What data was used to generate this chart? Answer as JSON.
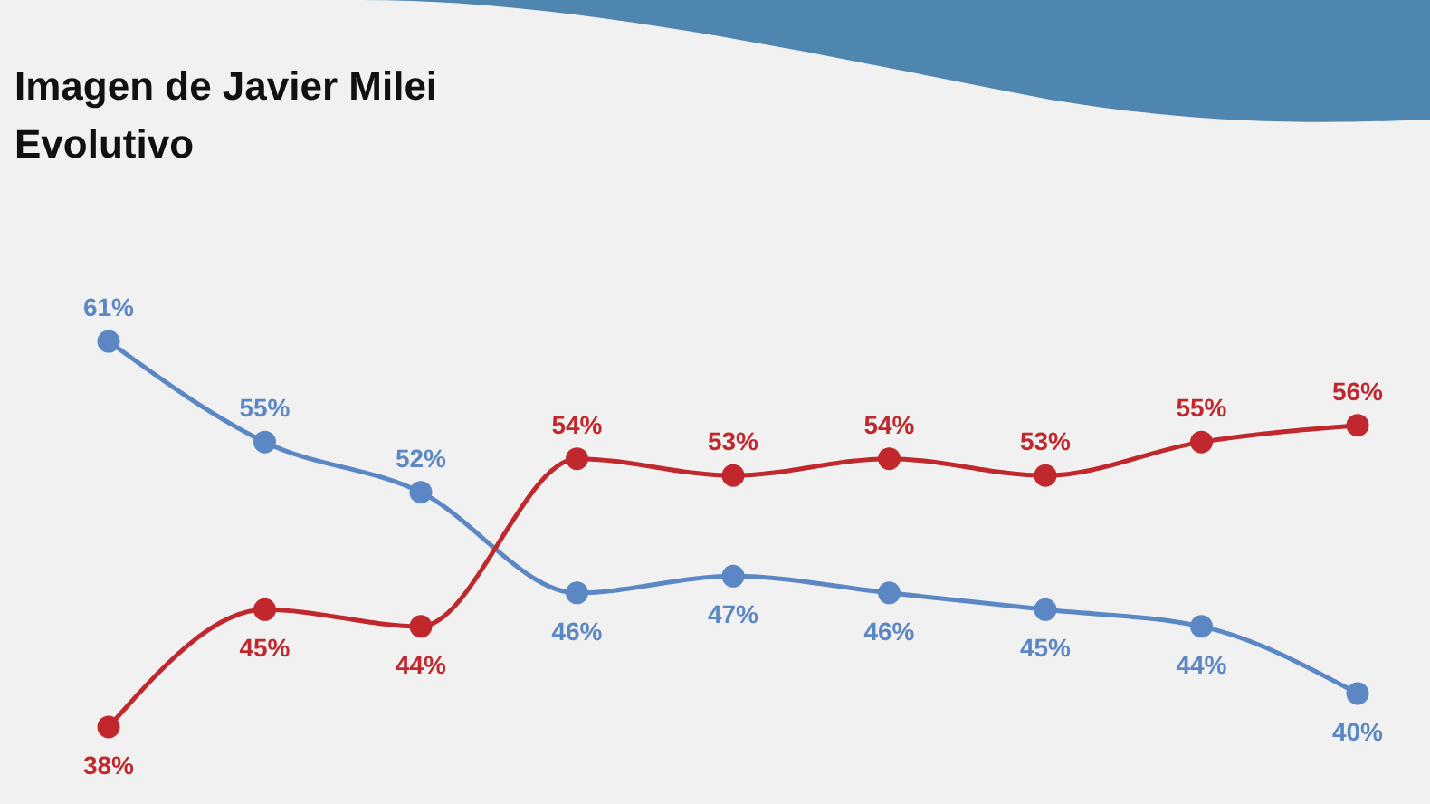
{
  "chart_data": {
    "type": "line",
    "title": "Imagen de Javier Milei",
    "subtitle": "Evolutivo",
    "categories": [
      null,
      null,
      null,
      null,
      null,
      null,
      null,
      null,
      null
    ],
    "marker": "circle",
    "legend": false,
    "grid": false,
    "tick_labels": false,
    "series": [
      {
        "color": "#5b87c5",
        "values": [
          61,
          55,
          52,
          46,
          47,
          46,
          45,
          44,
          40
        ],
        "value_labels": [
          "61%",
          "55%",
          "52%",
          "46%",
          "47%",
          "46%",
          "45%",
          "44%",
          "40%"
        ]
      },
      {
        "color": "#c0282d",
        "values": [
          38,
          45,
          44,
          54,
          53,
          54,
          53,
          55,
          56
        ],
        "value_labels": [
          "38%",
          "45%",
          "44%",
          "54%",
          "53%",
          "54%",
          "53%",
          "55%",
          "56%"
        ]
      }
    ]
  }
}
